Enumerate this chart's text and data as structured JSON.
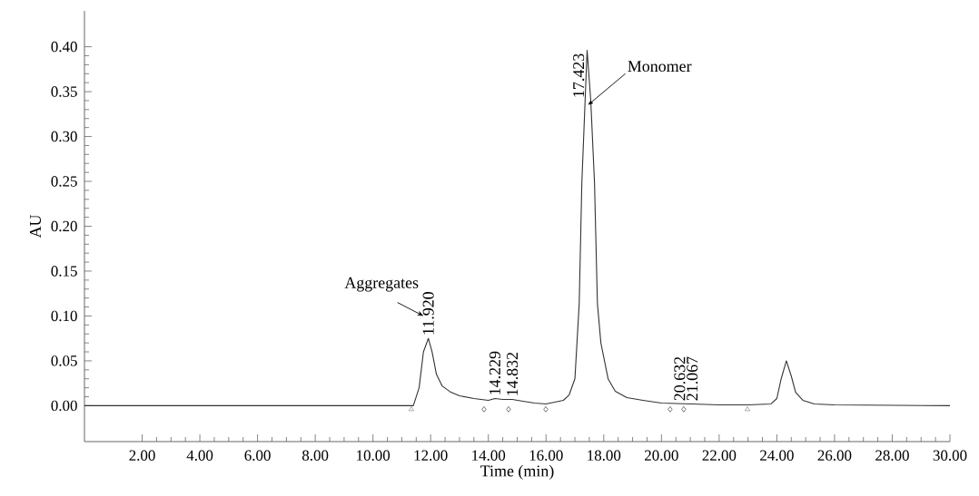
{
  "chart_data": {
    "type": "line",
    "xlabel": "Time (min)",
    "ylabel": "AU",
    "xlim": [
      0,
      30
    ],
    "ylim": [
      -0.04,
      0.44
    ],
    "xticks": [
      {
        "value": 2,
        "label": "2.00"
      },
      {
        "value": 4,
        "label": "4.00"
      },
      {
        "value": 6,
        "label": "6.00"
      },
      {
        "value": 8,
        "label": "8.00"
      },
      {
        "value": 10,
        "label": "10.00"
      },
      {
        "value": 12,
        "label": "12.00"
      },
      {
        "value": 14,
        "label": "14.00"
      },
      {
        "value": 16,
        "label": "16.00"
      },
      {
        "value": 18,
        "label": "18.00"
      },
      {
        "value": 20,
        "label": "20.00"
      },
      {
        "value": 22,
        "label": "22.00"
      },
      {
        "value": 24,
        "label": "24.00"
      },
      {
        "value": 26,
        "label": "26.00"
      },
      {
        "value": 28,
        "label": "28.00"
      },
      {
        "value": 30,
        "label": "30.00"
      }
    ],
    "yticks": [
      {
        "value": 0,
        "label": "0.00"
      },
      {
        "value": 0.05,
        "label": "0.05"
      },
      {
        "value": 0.1,
        "label": "0.10"
      },
      {
        "value": 0.15,
        "label": "0.15"
      },
      {
        "value": 0.2,
        "label": "0.20"
      },
      {
        "value": 0.25,
        "label": "0.25"
      },
      {
        "value": 0.3,
        "label": "0.30"
      },
      {
        "value": 0.35,
        "label": "0.35"
      },
      {
        "value": 0.4,
        "label": "0.40"
      }
    ],
    "grid": false,
    "series": [
      {
        "color": "#333333",
        "marker": "none",
        "x": [
          0,
          11.4,
          11.6,
          11.75,
          11.92,
          12.05,
          12.2,
          12.4,
          12.7,
          13.0,
          13.5,
          14.0,
          14.229,
          14.5,
          14.832,
          15.2,
          15.6,
          16.0,
          16.3,
          16.6,
          16.8,
          17.0,
          17.15,
          17.24,
          17.423,
          17.55,
          17.68,
          17.78,
          17.9,
          18.15,
          18.4,
          18.8,
          19.36,
          20.0,
          21.0,
          22.0,
          23.0,
          23.8,
          24.0,
          24.15,
          24.33,
          24.5,
          24.65,
          24.9,
          25.3,
          26.0,
          30
        ],
        "values": [
          0,
          0,
          0.02,
          0.06,
          0.075,
          0.06,
          0.035,
          0.022,
          0.015,
          0.011,
          0.008,
          0.006,
          0.008,
          0.007,
          0.007,
          0.005,
          0.003,
          0.002,
          0.004,
          0.006,
          0.012,
          0.03,
          0.114,
          0.248,
          0.396,
          0.34,
          0.248,
          0.114,
          0.07,
          0.03,
          0.016,
          0.009,
          0.006,
          0.003,
          0.002,
          0.001,
          0.001,
          0.002,
          0.008,
          0.03,
          0.05,
          0.033,
          0.015,
          0.006,
          0.002,
          0.001,
          0
        ]
      },
      {
        "type": "scatter",
        "color": "#999999",
        "marker": "triangle",
        "x": [
          11.33,
          22.98
        ],
        "values": [
          -0.004,
          -0.004
        ]
      },
      {
        "type": "scatter",
        "color": "#555555",
        "marker": "diamond",
        "x": [
          13.85,
          14.7,
          15.99,
          20.3,
          20.77
        ],
        "values": [
          -0.004,
          -0.004,
          -0.004,
          -0.004,
          -0.004
        ]
      }
    ],
    "annotations": [
      "Aggregates",
      {
        "text": "Monomer",
        "x": 17.45,
        "y": 0.335
      },
      {
        "text": "11.920",
        "x": 11.92,
        "y": 0.075
      },
      {
        "text": "14.229",
        "x": 14.229,
        "y": 0.008
      },
      {
        "text": "14.832",
        "x": 14.832,
        "y": 0.007
      },
      {
        "text": "17.423",
        "x": 17.423,
        "y": 0.396
      },
      {
        "text": "20.632",
        "x": 20.632,
        "y": 0.002
      },
      {
        "text": "21.067",
        "x": 21.067,
        "y": 0.002
      }
    ]
  }
}
